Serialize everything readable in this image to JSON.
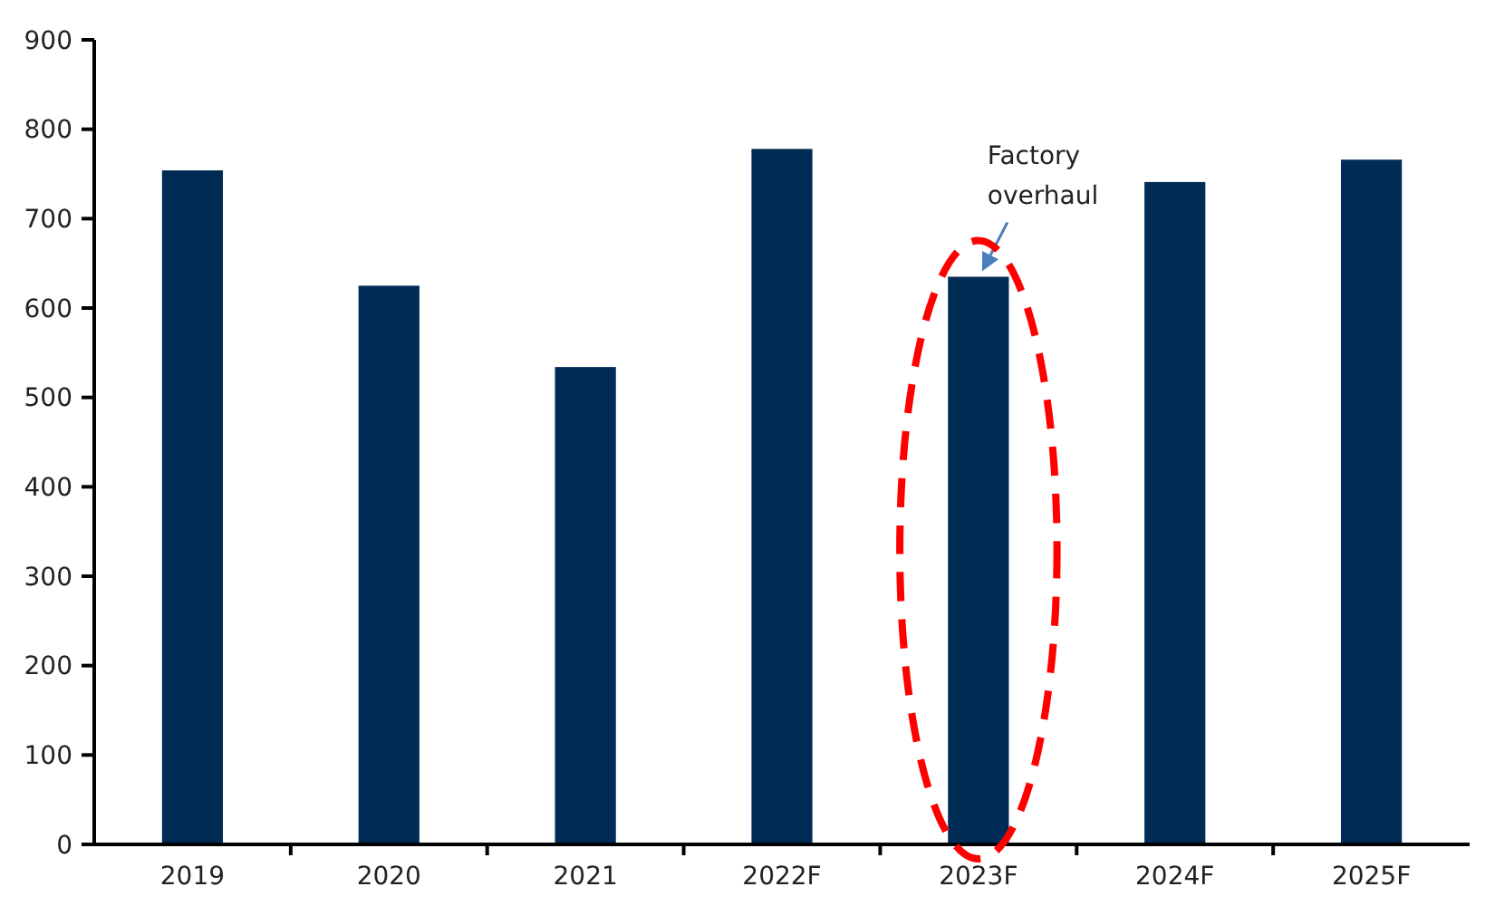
{
  "chart_data": {
    "type": "bar",
    "categories": [
      "2019",
      "2020",
      "2021",
      "2022F",
      "2023F",
      "2024F",
      "2025F"
    ],
    "values": [
      754,
      625,
      534,
      778,
      635,
      741,
      766
    ],
    "color": "#002b55",
    "ylim": [
      0,
      900
    ],
    "yticks": [
      0,
      100,
      200,
      300,
      400,
      500,
      600,
      700,
      800,
      900
    ],
    "annotations": [
      {
        "text": "Factory overhaul",
        "x": "2023F",
        "y": 635
      }
    ]
  }
}
